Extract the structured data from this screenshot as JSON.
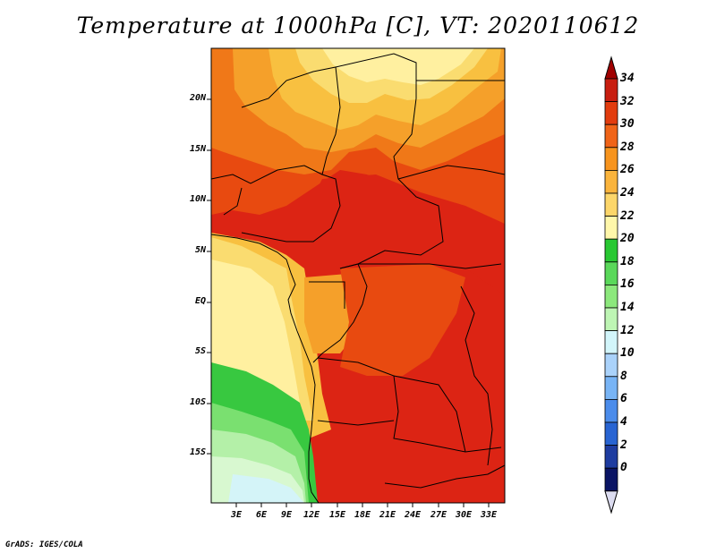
{
  "title": "Temperature at 1000hPa [C], VT: 2020110612",
  "credit": "GrADS: IGES/COLA",
  "map": {
    "lon_ticks": [
      "3E",
      "6E",
      "9E",
      "12E",
      "15E",
      "18E",
      "21E",
      "24E",
      "27E",
      "30E",
      "33E"
    ],
    "lat_ticks": [
      "20N",
      "15N",
      "10N",
      "5N",
      "EQ",
      "5S",
      "10S",
      "15S"
    ],
    "colors": {
      "land_hot": "#dc2414",
      "orange_red": "#e84a10",
      "orange": "#f07818",
      "light_orange": "#f5a02a",
      "pale_orange": "#f8c040",
      "yellow": "#fadc70",
      "cream": "#fff0a0",
      "green_dark": "#38c840",
      "green_mid": "#7ae070",
      "green_light": "#b4f0a8",
      "mint": "#d8f8d0",
      "pale_blue": "#d4f4f8"
    }
  },
  "colorbar": {
    "labels": [
      "34",
      "32",
      "30",
      "28",
      "26",
      "24",
      "22",
      "20",
      "18",
      "16",
      "14",
      "12",
      "10",
      "8",
      "6",
      "4",
      "2",
      "0"
    ],
    "colors": [
      "#a00000",
      "#c81e10",
      "#e23c0e",
      "#f06418",
      "#f7941e",
      "#fab43c",
      "#fcd66a",
      "#fff7aa",
      "#28c832",
      "#5ad85a",
      "#8ce87c",
      "#bef5b4",
      "#d2f5fa",
      "#aad2fa",
      "#78b4f5",
      "#4b8ceb",
      "#2864d2",
      "#1e3ca0",
      "#0a1464",
      "#dcdcf0"
    ]
  }
}
